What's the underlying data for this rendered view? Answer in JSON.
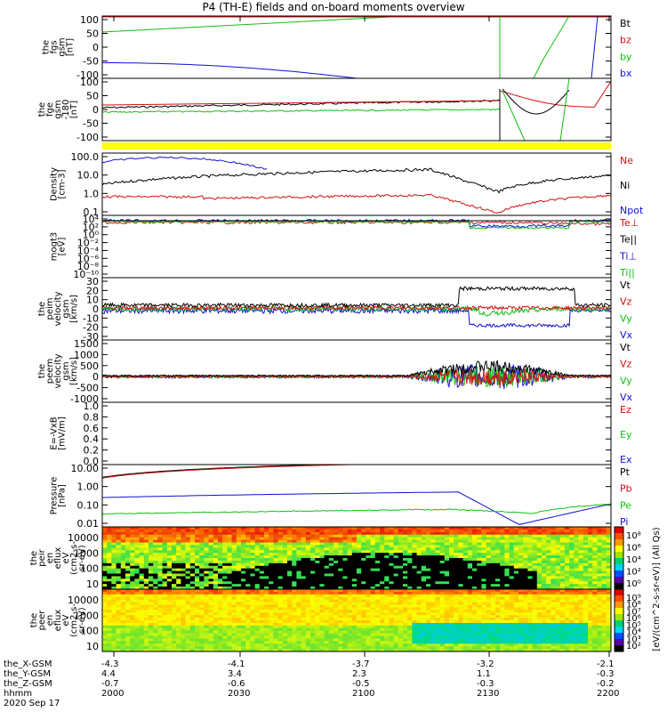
{
  "title": "P4 (TH-E) fields and on-board moments overview",
  "colors": {
    "black": "#000000",
    "red": "#d01010",
    "green": "#10c010",
    "blue": "#1010d0",
    "yellow": "#ffff00"
  },
  "chart_data": [
    {
      "id": "p1",
      "type": "line",
      "ylabel": [
        "the",
        "fgs",
        "gsm",
        "[nT]"
      ],
      "yticks": [
        "100",
        "50",
        "0",
        "-50",
        "-100"
      ],
      "ylim": [
        -100,
        100
      ],
      "series": [
        {
          "name": "Bt",
          "color": "black"
        },
        {
          "name": "bz",
          "color": "red"
        },
        {
          "name": "by",
          "color": "green"
        },
        {
          "name": "bx",
          "color": "blue"
        }
      ]
    },
    {
      "id": "p2",
      "type": "line",
      "ylabel": [
        "the",
        "fge",
        "gsm",
        "-180",
        "[nT]"
      ],
      "yticks": [
        "100",
        "50",
        "0",
        "-50",
        "-100"
      ],
      "ylim": [
        -120,
        120
      ],
      "series": []
    },
    {
      "id": "p3",
      "type": "line",
      "ylabel": [
        "Density",
        "[cm-3]"
      ],
      "yticks": [
        "100.0",
        "10.0",
        "1.0",
        "0.1"
      ],
      "scale": "log",
      "ylim": [
        0.05,
        200
      ],
      "series": [
        {
          "name": "Ne",
          "color": "red"
        },
        {
          "name": "Ni",
          "color": "black"
        },
        {
          "name": "Npot",
          "color": "blue"
        }
      ]
    },
    {
      "id": "p4",
      "type": "line",
      "ylabel": [
        "mogt3",
        "[eV]"
      ],
      "yticks": [
        "10⁴",
        "10²",
        "10⁰",
        "10⁻²",
        "10⁻⁴",
        "10⁻⁶",
        "10⁻⁸",
        "10⁻¹⁰"
      ],
      "scale": "log",
      "series": [
        {
          "name": "Te⊥",
          "color": "red"
        },
        {
          "name": "Te||",
          "color": "black"
        },
        {
          "name": "Ti⊥",
          "color": "blue"
        },
        {
          "name": "Ti||",
          "color": "green"
        }
      ]
    },
    {
      "id": "p5",
      "type": "line",
      "ylabel": [
        "the",
        "peim",
        "velocity",
        "gsm",
        "[km/s]"
      ],
      "yticks": [
        "30",
        "20",
        "10",
        "0",
        "-10",
        "-20",
        "-30"
      ],
      "ylim": [
        -30,
        30
      ],
      "series": [
        {
          "name": "Vt",
          "color": "black"
        },
        {
          "name": "Vz",
          "color": "red"
        },
        {
          "name": "Vy",
          "color": "green"
        },
        {
          "name": "Vx",
          "color": "blue"
        }
      ]
    },
    {
      "id": "p6",
      "type": "line",
      "ylabel": [
        "the",
        "peem",
        "velocity",
        "gsm",
        "[km/s]"
      ],
      "yticks": [
        "1500",
        "1000",
        "500",
        "0",
        "-500",
        "-1000"
      ],
      "ylim": [
        -1000,
        1500
      ],
      "series": [
        {
          "name": "Vt",
          "color": "black"
        },
        {
          "name": "Vz",
          "color": "red"
        },
        {
          "name": "Vy",
          "color": "green"
        },
        {
          "name": "Vx",
          "color": "blue"
        }
      ]
    },
    {
      "id": "p7",
      "type": "line",
      "ylabel": [
        "E=-VxB",
        "[mV/m]"
      ],
      "yticks": [
        "1.0",
        "0.8",
        "0.6",
        "0.4",
        "0.2",
        "0.0"
      ],
      "ylim": [
        0,
        1
      ],
      "series": [
        {
          "name": "Ez",
          "color": "red"
        },
        {
          "name": "Ey",
          "color": "green"
        },
        {
          "name": "Ex",
          "color": "blue"
        }
      ]
    },
    {
      "id": "p8",
      "type": "line",
      "ylabel": [
        "Pressure",
        "[nPa]"
      ],
      "yticks": [
        "10.00",
        "1.00",
        "0.10",
        "0.01"
      ],
      "scale": "log",
      "series": [
        {
          "name": "Pt",
          "color": "black"
        },
        {
          "name": "Pb",
          "color": "red"
        },
        {
          "name": "Pe",
          "color": "green"
        },
        {
          "name": "Pi",
          "color": "blue"
        }
      ]
    },
    {
      "id": "p9",
      "type": "heatmap",
      "ylabel": [
        "the",
        "peir",
        "en",
        "eflux",
        "eV",
        "(cm2-s-",
        "sr-eV)"
      ],
      "yticks": [
        "10000",
        "1000",
        "100",
        "10"
      ],
      "colorbar_ticks": [
        "10⁸",
        "10⁶",
        "10⁴",
        "10²",
        "10⁰"
      ]
    },
    {
      "id": "p10",
      "type": "heatmap",
      "ylabel": [
        "the",
        "peer",
        "en",
        "eflux",
        "eV",
        "(cm2-s-",
        "sr-eV)"
      ],
      "yticks": [
        "10000",
        "1000",
        "100",
        "10"
      ],
      "colorbar_ticks": [
        "10⁹",
        "10⁸",
        "10⁷",
        "10⁶",
        "10⁵",
        "10⁴",
        "10³",
        "10²"
      ]
    }
  ],
  "colorbar_title": "[eV/(cm^2-s-sr-eV)] (All Qs)",
  "footer": {
    "rows": [
      {
        "label": "the_X-GSM",
        "values": [
          "-4.3",
          "-4.1",
          "-3.7",
          "-3.2",
          "-2.1"
        ]
      },
      {
        "label": "the_Y-GSM",
        "values": [
          "4.4",
          "3.4",
          "2.3",
          "1.1",
          "-0.3"
        ]
      },
      {
        "label": "the_Z-GSM",
        "values": [
          "-0.7",
          "-0.6",
          "-0.5",
          "-0.3",
          "-0.2"
        ]
      },
      {
        "label": "hhmm",
        "values": [
          "2000",
          "2030",
          "2100",
          "2130",
          "2200"
        ]
      }
    ],
    "date": "2020 Sep 17"
  }
}
